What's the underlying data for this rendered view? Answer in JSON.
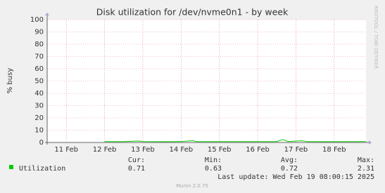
{
  "chart_data": {
    "type": "line",
    "title": "Disk utilization for /dev/nvme0n1 - by week",
    "y_label": "% busy",
    "watermark": "RRDTOOL / TOBI OETIKER",
    "x": [
      12.5,
      13.0,
      13.4,
      13.5,
      14.0,
      14.5,
      14.8,
      14.9,
      15.5,
      16.0,
      16.5,
      17.0,
      17.15,
      17.3,
      17.65,
      17.8,
      18.3,
      18.8,
      19.33
    ],
    "series": [
      {
        "name": "Utilization",
        "color": "#00cc00",
        "values": [
          0.7,
          0.68,
          1.2,
          0.7,
          0.66,
          0.7,
          1.5,
          0.7,
          0.68,
          0.72,
          0.7,
          0.7,
          2.31,
          0.7,
          1.4,
          0.68,
          0.63,
          0.7,
          0.71
        ]
      }
    ],
    "xlim": [
      11.0,
      19.33
    ],
    "xticks": [
      {
        "value": 11.5,
        "label": "11 Feb"
      },
      {
        "value": 12.5,
        "label": "12 Feb"
      },
      {
        "value": 13.5,
        "label": "13 Feb"
      },
      {
        "value": 14.5,
        "label": "14 Feb"
      },
      {
        "value": 15.5,
        "label": "15 Feb"
      },
      {
        "value": 16.5,
        "label": "16 Feb"
      },
      {
        "value": 17.5,
        "label": "17 Feb"
      },
      {
        "value": 18.5,
        "label": "18 Feb"
      }
    ],
    "ylim": [
      0,
      100
    ],
    "yticks": [
      0,
      10,
      20,
      30,
      40,
      50,
      60,
      70,
      80,
      90,
      100
    ],
    "grid": true,
    "stats": {
      "labels": [
        "Cur:",
        "Min:",
        "Avg:",
        "Max:"
      ],
      "values": [
        0.71,
        0.63,
        0.72,
        2.31
      ]
    },
    "last_update": "Last update: Wed Feb 19 08:00:15 2025",
    "footer": "Munin 2.0.75"
  }
}
